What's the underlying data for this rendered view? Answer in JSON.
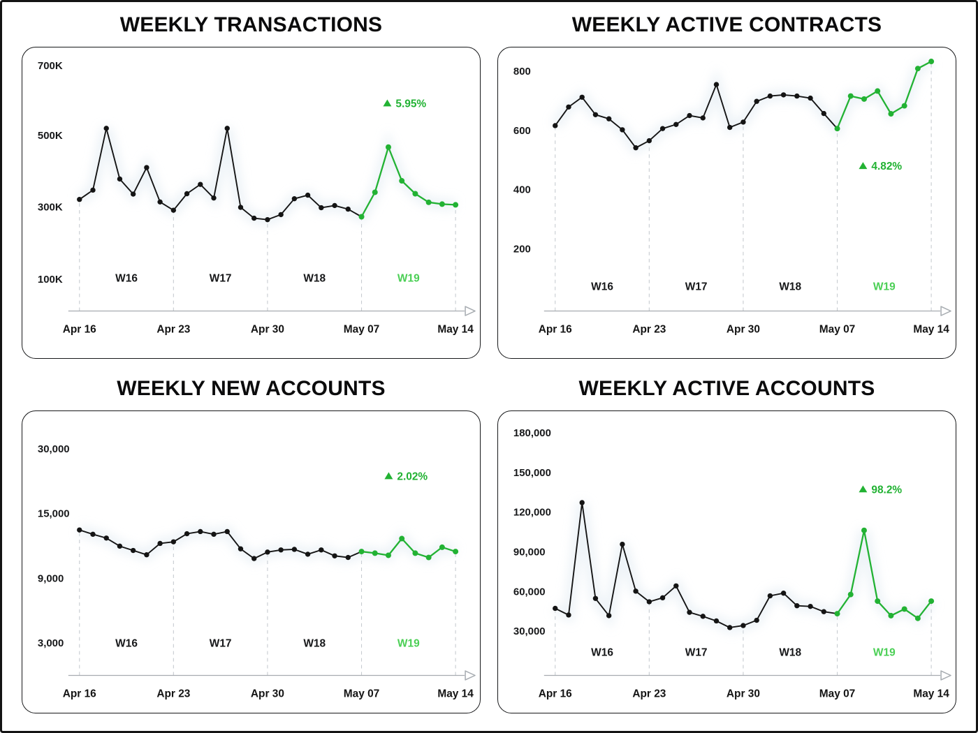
{
  "palette": {
    "series_color": "#141414",
    "highlight_color": "#22b233",
    "week_highlight_color": "#4bcf55",
    "grid_dash_color": "#c6cbd0",
    "axis_color": "#a6abb0",
    "text_color": "#17181a",
    "glow_color": "#dfe9f1"
  },
  "chart_data": [
    {
      "type": "line",
      "title": "WEEKLY TRANSACTIONS",
      "badge": {
        "symbol": "▲",
        "text": "5.95%",
        "meaning": "up"
      },
      "x_tick_labels": [
        "Apr 16",
        "Apr 23",
        "Apr 30",
        "May 07",
        "May 14"
      ],
      "week_labels": [
        "W16",
        "W17",
        "W18",
        "W19"
      ],
      "highlighted_week": "W19",
      "yticks": [
        {
          "label": "700K",
          "value": 700000
        },
        {
          "label": "500K",
          "value": 500000
        },
        {
          "label": "300K",
          "value": 300000
        },
        {
          "label": "100K",
          "value": 100000
        }
      ],
      "points_per_week": 7,
      "highlight_start_index": 21,
      "values": [
        320000,
        346000,
        519000,
        377000,
        335000,
        409000,
        313000,
        290000,
        336000,
        362000,
        324000,
        519000,
        298000,
        268000,
        264000,
        278000,
        322000,
        332000,
        297000,
        303000,
        293000,
        272000,
        340000,
        466000,
        372000,
        336000,
        312000,
        307000,
        305000
      ]
    },
    {
      "type": "line",
      "title": "WEEKLY ACTIVE CONTRACTS",
      "badge": {
        "symbol": "▲",
        "text": "4.82%",
        "meaning": "up"
      },
      "x_tick_labels": [
        "Apr 16",
        "Apr 23",
        "Apr 30",
        "May 07",
        "May 14"
      ],
      "week_labels": [
        "W16",
        "W17",
        "W18",
        "W19"
      ],
      "highlighted_week": "W19",
      "yticks": [
        {
          "label": "800",
          "value": 800
        },
        {
          "label": "600",
          "value": 600
        },
        {
          "label": "400",
          "value": 400
        },
        {
          "label": "200",
          "value": 200
        }
      ],
      "points_per_week": 7,
      "highlight_start_index": 21,
      "values": [
        615,
        678,
        711,
        652,
        638,
        601,
        540,
        564,
        605,
        619,
        649,
        641,
        754,
        609,
        627,
        697,
        715,
        719,
        715,
        708,
        656,
        605,
        715,
        705,
        732,
        655,
        682,
        808,
        832
      ]
    },
    {
      "type": "line",
      "title": "WEEKLY NEW ACCOUNTS",
      "badge": {
        "symbol": "▲",
        "text": "2.02%",
        "meaning": "up"
      },
      "x_tick_labels": [
        "Apr 16",
        "Apr 23",
        "Apr 30",
        "May 07",
        "May 14"
      ],
      "week_labels": [
        "W16",
        "W17",
        "W18",
        "W19"
      ],
      "highlighted_week": "W19",
      "yticks": [
        {
          "label": "30,000",
          "value": 30000
        },
        {
          "label": "15,000",
          "value": 15000
        },
        {
          "label": "9,000",
          "value": 9000
        },
        {
          "label": "3,000",
          "value": 3000
        }
      ],
      "points_per_week": 7,
      "highlight_start_index": 21,
      "values": [
        13450,
        13050,
        12700,
        11950,
        11550,
        11150,
        12200,
        12350,
        13100,
        13300,
        13050,
        13300,
        11700,
        10800,
        11400,
        11600,
        11650,
        11200,
        11600,
        11050,
        10900,
        11450,
        11300,
        11100,
        12650,
        11300,
        10900,
        11850,
        11450
      ]
    },
    {
      "type": "line",
      "title": "WEEKLY ACTIVE ACCOUNTS",
      "badge": {
        "symbol": "▲",
        "text": "98.2%",
        "meaning": "up"
      },
      "x_tick_labels": [
        "Apr 16",
        "Apr 23",
        "Apr 30",
        "May 07",
        "May 14"
      ],
      "week_labels": [
        "W16",
        "W17",
        "W18",
        "W19"
      ],
      "highlighted_week": "W19",
      "yticks": [
        {
          "label": "180,000",
          "value": 180000
        },
        {
          "label": "150,000",
          "value": 150000
        },
        {
          "label": "120,000",
          "value": 120000
        },
        {
          "label": "90,000",
          "value": 90000
        },
        {
          "label": "60,000",
          "value": 60000
        },
        {
          "label": "30,000",
          "value": 30000
        }
      ],
      "points_per_week": 7,
      "highlight_start_index": 21,
      "values": [
        47000,
        42000,
        127000,
        54500,
        41500,
        95500,
        60000,
        52000,
        55000,
        64000,
        44000,
        41000,
        37500,
        32500,
        34000,
        38000,
        56500,
        58500,
        49000,
        48500,
        44500,
        43000,
        57500,
        106000,
        52500,
        41500,
        46500,
        39500,
        52500
      ]
    }
  ]
}
